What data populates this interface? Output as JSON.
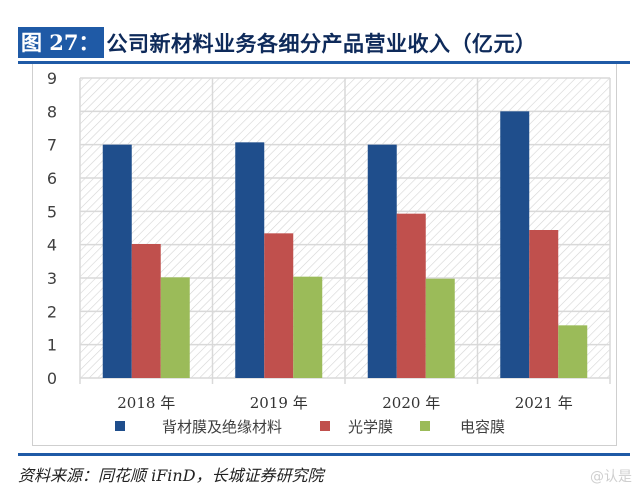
{
  "header": {
    "figure_label": "图 27：",
    "title": "公司新材料业务各细分产品营业收入（亿元）"
  },
  "footer": {
    "source": "资料来源：同花顺 iFinD，长城证券研究院",
    "watermark": "@认是"
  },
  "colors": {
    "accent": "#1f5aa6",
    "series": [
      "#1f4e8c",
      "#c0504d",
      "#9bbb59"
    ],
    "grid": "#d9d9d9",
    "hatch": "#d4d4d4"
  },
  "chart_data": {
    "type": "bar",
    "title": "公司新材料业务各细分产品营业收入（亿元）",
    "xlabel": "",
    "ylabel": "",
    "ylim": [
      0,
      9
    ],
    "yticks": [
      "0",
      "1",
      "2",
      "3",
      "4",
      "5",
      "6",
      "7",
      "8",
      "9"
    ],
    "grid": true,
    "legend_position": "bottom",
    "categories": [
      "2018 年",
      "2019 年",
      "2020 年",
      "2021 年"
    ],
    "series": [
      {
        "name": "背材膜及绝缘材料",
        "values": [
          7.0,
          7.07,
          7.0,
          8.0
        ]
      },
      {
        "name": "光学膜",
        "values": [
          4.02,
          4.34,
          4.93,
          4.44
        ]
      },
      {
        "name": "电容膜",
        "values": [
          3.02,
          3.04,
          2.98,
          1.58
        ]
      }
    ]
  }
}
